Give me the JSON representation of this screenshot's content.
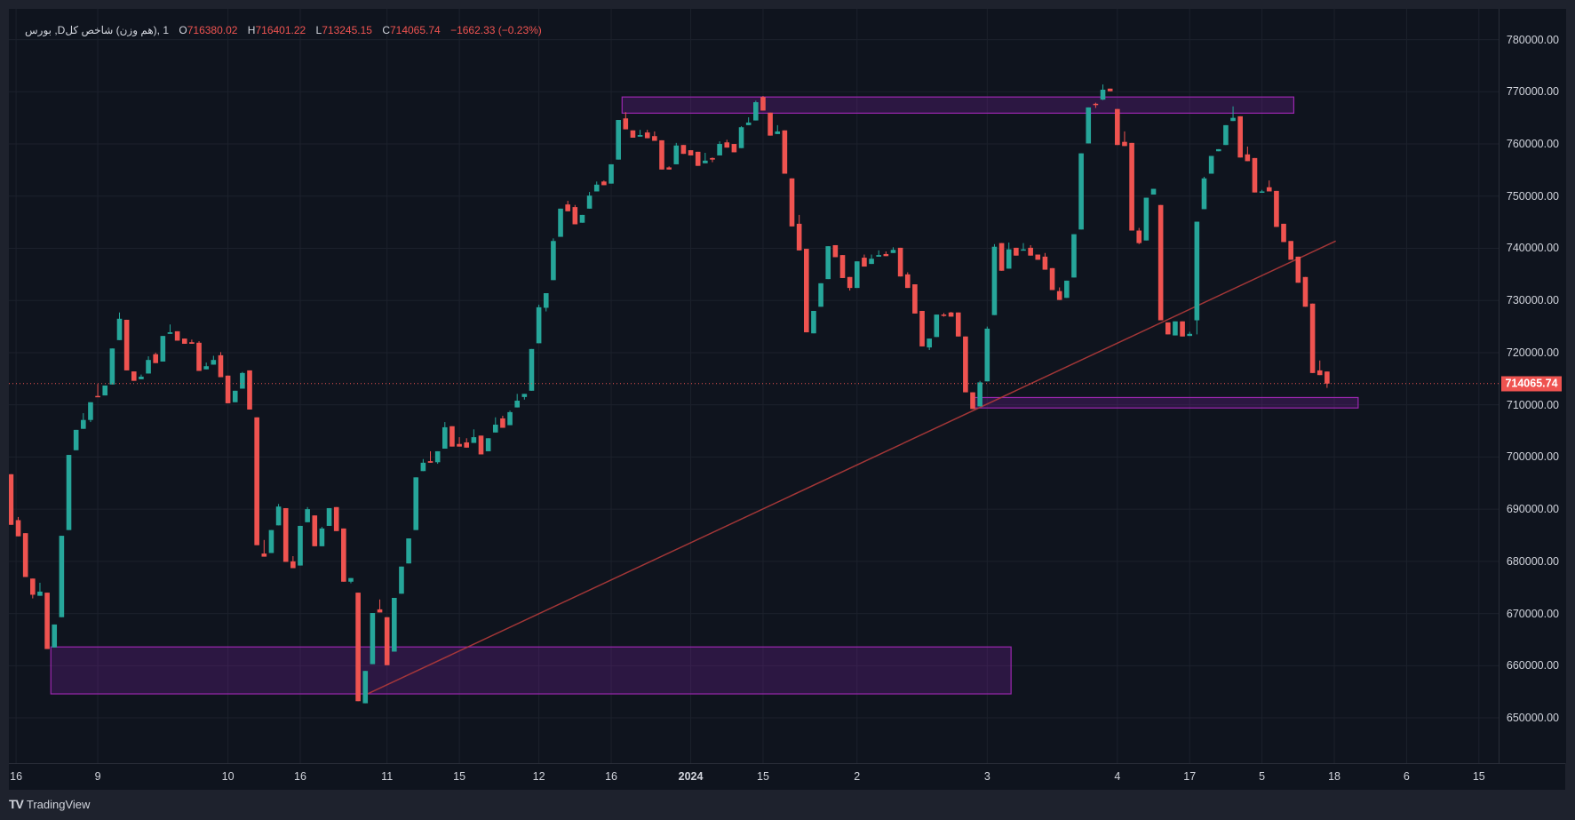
{
  "legend": {
    "symbol": "1 ,(هم وزن) شاخص کلD, بورس",
    "open_label": "O",
    "open": "716380.02",
    "high_label": "H",
    "high": "716401.22",
    "low_label": "L",
    "low": "713245.15",
    "close_label": "C",
    "close": "714065.74",
    "change": "−1662.33 (−0.23%)"
  },
  "footer": {
    "brand": "TradingView",
    "logo_glyph": "TV"
  },
  "colors": {
    "up": "#26a69a",
    "down": "#ef5350",
    "zone_border": "#9c27b0",
    "zone_fill": "rgba(123,31,162,0.28)",
    "trendline": "#b23a3a",
    "background": "#0f141e"
  },
  "chart_data": {
    "type": "candlestick",
    "interval": "1D",
    "price_unit_note": "ohlc values in thousands",
    "ylim": [
      650000,
      780000
    ],
    "y_ticks": [
      "780000.00",
      "770000.00",
      "760000.00",
      "750000.00",
      "740000.00",
      "730000.00",
      "720000.00",
      "710000.00",
      "700000.00",
      "690000.00",
      "680000.00",
      "670000.00",
      "660000.00",
      "650000.00"
    ],
    "x_ticks": [
      "16",
      "9",
      "10",
      "16",
      "11",
      "15",
      "12",
      "16",
      "2024",
      "15",
      "2",
      "3",
      "4",
      "17",
      "5",
      "18",
      "6",
      "15"
    ],
    "current_price": "714065.74",
    "ohlc": [
      [
        696.7,
        696.7,
        687.0,
        687.0
      ],
      [
        687.9,
        688.5,
        684.8,
        684.8
      ],
      [
        685.4,
        685.4,
        677.0,
        677.0
      ],
      [
        676.7,
        676.7,
        672.9,
        673.6
      ],
      [
        673.4,
        675.9,
        673.4,
        674.2
      ],
      [
        674.0,
        674.0,
        663.2,
        663.2
      ],
      [
        663.5,
        667.9,
        663.5,
        667.9
      ],
      [
        669.3,
        684.9,
        669.3,
        684.9
      ],
      [
        686.0,
        700.4,
        686.0,
        700.4
      ],
      [
        701.3,
        705.2,
        701.3,
        705.2
      ],
      [
        705.4,
        708.4,
        705.4,
        707.1
      ],
      [
        707.1,
        710.5,
        706.7,
        710.5
      ],
      [
        711.7,
        714.0,
        711.5,
        711.5
      ],
      [
        711.8,
        713.7,
        711.8,
        713.7
      ],
      [
        713.9,
        720.8,
        713.9,
        720.8
      ],
      [
        722.4,
        727.7,
        722.4,
        726.5
      ],
      [
        726.3,
        726.3,
        716.6,
        716.6
      ],
      [
        716.4,
        716.4,
        714.6,
        714.6
      ],
      [
        714.9,
        715.8,
        714.9,
        715.4
      ],
      [
        716.0,
        719.3,
        716.0,
        718.6
      ],
      [
        719.7,
        720.0,
        718.0,
        718.0
      ],
      [
        718.3,
        723.2,
        718.3,
        723.2
      ],
      [
        723.6,
        725.4,
        723.6,
        723.9
      ],
      [
        724.1,
        724.1,
        722.3,
        722.3
      ],
      [
        722.7,
        722.7,
        721.7,
        721.7
      ],
      [
        722.0,
        722.5,
        721.7,
        721.7
      ],
      [
        721.9,
        722.2,
        716.5,
        716.5
      ],
      [
        716.8,
        718.1,
        716.8,
        717.4
      ],
      [
        717.7,
        719.4,
        717.7,
        718.6
      ],
      [
        719.5,
        720.1,
        715.3,
        715.3
      ],
      [
        715.6,
        715.6,
        710.3,
        710.3
      ],
      [
        710.5,
        712.7,
        710.5,
        712.7
      ],
      [
        713.1,
        716.3,
        713.1,
        716.1
      ],
      [
        716.6,
        716.6,
        709.1,
        709.1
      ],
      [
        707.6,
        707.6,
        683.1,
        683.1
      ],
      [
        681.5,
        684.1,
        680.9,
        680.9
      ],
      [
        681.6,
        686.0,
        681.6,
        686.0
      ],
      [
        686.9,
        691.0,
        686.9,
        690.5
      ],
      [
        690.2,
        690.2,
        679.9,
        679.9
      ],
      [
        680.0,
        681.0,
        678.7,
        678.7
      ],
      [
        679.2,
        686.8,
        679.2,
        686.8
      ],
      [
        687.5,
        690.4,
        687.5,
        690.0
      ],
      [
        688.8,
        688.8,
        682.9,
        682.9
      ],
      [
        682.9,
        686.6,
        682.9,
        686.3
      ],
      [
        686.8,
        690.2,
        686.8,
        690.2
      ],
      [
        690.4,
        690.4,
        685.8,
        685.8
      ],
      [
        686.3,
        686.3,
        676.1,
        676.1
      ],
      [
        676.1,
        676.8,
        675.8,
        676.8
      ],
      [
        674.0,
        674.0,
        653.2,
        653.2
      ],
      [
        652.8,
        659.0,
        652.8,
        659.0
      ],
      [
        660.3,
        670.1,
        660.3,
        670.1
      ],
      [
        670.8,
        672.7,
        670.2,
        670.2
      ],
      [
        669.3,
        669.3,
        660.1,
        660.1
      ],
      [
        662.7,
        673.0,
        662.7,
        673.0
      ],
      [
        673.8,
        679.0,
        673.8,
        679.0
      ],
      [
        679.6,
        684.4,
        679.6,
        684.4
      ],
      [
        686.0,
        696.1,
        686.0,
        696.1
      ],
      [
        697.3,
        699.6,
        697.3,
        698.9
      ],
      [
        699.2,
        701.1,
        698.9,
        698.9
      ],
      [
        699.0,
        701.1,
        698.7,
        701.1
      ],
      [
        701.6,
        706.7,
        701.6,
        705.7
      ],
      [
        705.9,
        705.9,
        702.0,
        702.0
      ],
      [
        702.5,
        703.8,
        702.0,
        702.0
      ],
      [
        702.8,
        703.6,
        701.8,
        701.8
      ],
      [
        702.7,
        705.3,
        702.7,
        703.8
      ],
      [
        704.1,
        704.1,
        700.5,
        700.5
      ],
      [
        701.1,
        703.6,
        701.1,
        703.6
      ],
      [
        704.7,
        707.6,
        704.7,
        706.2
      ],
      [
        707.4,
        707.9,
        705.6,
        705.6
      ],
      [
        706.1,
        708.9,
        706.1,
        708.6
      ],
      [
        709.5,
        712.1,
        709.5,
        710.8
      ],
      [
        711.5,
        712.1,
        711.0,
        712.1
      ],
      [
        712.7,
        720.7,
        712.7,
        720.7
      ],
      [
        721.8,
        729.2,
        721.8,
        728.7
      ],
      [
        728.6,
        731.4,
        727.9,
        731.4
      ],
      [
        733.9,
        741.9,
        733.9,
        741.4
      ],
      [
        742.2,
        747.6,
        742.2,
        747.6
      ],
      [
        748.4,
        749.1,
        747.1,
        747.1
      ],
      [
        747.9,
        748.3,
        744.6,
        744.6
      ],
      [
        744.9,
        746.4,
        744.9,
        746.4
      ],
      [
        747.6,
        750.8,
        747.6,
        750.1
      ],
      [
        750.9,
        752.8,
        750.9,
        752.2
      ],
      [
        752.8,
        753.0,
        752.1,
        752.1
      ],
      [
        752.4,
        756.1,
        752.4,
        756.1
      ],
      [
        757.0,
        764.6,
        757.0,
        764.6
      ],
      [
        764.9,
        766.1,
        762.8,
        762.8
      ],
      [
        762.6,
        762.6,
        761.2,
        761.2
      ],
      [
        761.4,
        762.7,
        761.4,
        761.7
      ],
      [
        762.2,
        762.7,
        761.1,
        761.1
      ],
      [
        761.5,
        762.4,
        760.6,
        760.6
      ],
      [
        760.7,
        760.7,
        755.1,
        755.1
      ],
      [
        755.5,
        755.7,
        755.1,
        755.1
      ],
      [
        756.1,
        760.2,
        756.1,
        759.7
      ],
      [
        759.8,
        759.8,
        758.1,
        758.1
      ],
      [
        758.8,
        758.8,
        757.8,
        757.8
      ],
      [
        758.5,
        758.5,
        755.8,
        755.8
      ],
      [
        756.3,
        758.3,
        756.3,
        756.8
      ],
      [
        757.3,
        757.4,
        756.5,
        757.0
      ],
      [
        757.8,
        760.5,
        757.8,
        760.0
      ],
      [
        760.3,
        760.8,
        759.3,
        759.3
      ],
      [
        760.0,
        760.0,
        758.4,
        758.4
      ],
      [
        759.2,
        763.4,
        759.2,
        763.2
      ],
      [
        763.6,
        765.1,
        763.6,
        764.1
      ],
      [
        764.5,
        768.3,
        764.5,
        768.0
      ],
      [
        769.0,
        769.2,
        766.4,
        766.4
      ],
      [
        766.0,
        766.0,
        761.6,
        761.6
      ],
      [
        761.9,
        763.6,
        761.9,
        762.4
      ],
      [
        762.6,
        762.6,
        754.3,
        754.3
      ],
      [
        753.4,
        753.4,
        744.2,
        744.2
      ],
      [
        744.7,
        746.4,
        739.6,
        739.6
      ],
      [
        739.9,
        739.9,
        723.9,
        723.9
      ],
      [
        723.7,
        728.0,
        723.7,
        728.0
      ],
      [
        728.8,
        733.3,
        728.8,
        733.3
      ],
      [
        734.1,
        740.4,
        734.1,
        740.4
      ],
      [
        740.6,
        740.6,
        738.3,
        738.3
      ],
      [
        738.7,
        738.7,
        734.3,
        734.3
      ],
      [
        734.5,
        734.5,
        731.9,
        732.4
      ],
      [
        732.4,
        737.5,
        732.4,
        737.5
      ],
      [
        738.2,
        738.8,
        736.5,
        736.5
      ],
      [
        737.0,
        738.8,
        737.0,
        738.0
      ],
      [
        738.4,
        739.6,
        738.4,
        738.7
      ],
      [
        738.9,
        739.4,
        738.5,
        738.5
      ],
      [
        739.1,
        740.2,
        739.1,
        739.7
      ],
      [
        740.1,
        740.1,
        734.6,
        734.6
      ],
      [
        735.0,
        735.4,
        732.4,
        732.4
      ],
      [
        733.1,
        733.1,
        727.5,
        727.5
      ],
      [
        728.0,
        728.0,
        721.2,
        721.2
      ],
      [
        721.0,
        722.7,
        720.5,
        722.7
      ],
      [
        723.0,
        727.3,
        723.0,
        727.3
      ],
      [
        727.3,
        727.6,
        726.9,
        727.1
      ],
      [
        727.7,
        727.8,
        726.9,
        726.9
      ],
      [
        727.7,
        727.7,
        723.1,
        723.1
      ],
      [
        723.1,
        723.1,
        712.4,
        712.4
      ],
      [
        712.4,
        712.4,
        709.2,
        709.2
      ],
      [
        709.7,
        714.6,
        709.7,
        714.3
      ],
      [
        714.5,
        725.0,
        714.5,
        724.6
      ],
      [
        727.2,
        740.8,
        727.2,
        740.3
      ],
      [
        741.0,
        741.0,
        735.7,
        735.7
      ],
      [
        736.1,
        741.1,
        736.1,
        739.8
      ],
      [
        740.1,
        740.1,
        738.6,
        738.6
      ],
      [
        739.6,
        741.0,
        739.6,
        739.8
      ],
      [
        740.1,
        740.6,
        738.6,
        738.6
      ],
      [
        738.8,
        738.8,
        737.8,
        737.8
      ],
      [
        738.4,
        739.1,
        735.9,
        735.9
      ],
      [
        736.2,
        736.2,
        732.0,
        732.0
      ],
      [
        731.8,
        732.5,
        730.1,
        730.1
      ],
      [
        730.5,
        733.8,
        730.5,
        733.8
      ],
      [
        734.4,
        742.7,
        734.4,
        742.7
      ],
      [
        743.6,
        758.2,
        743.6,
        758.2
      ],
      [
        760.1,
        767.0,
        760.1,
        767.0
      ],
      [
        767.7,
        767.9,
        766.9,
        767.6
      ],
      [
        768.5,
        771.4,
        768.4,
        770.4
      ],
      [
        770.6,
        770.6,
        770.1,
        770.1
      ],
      [
        766.7,
        766.7,
        759.8,
        759.8
      ],
      [
        760.4,
        762.4,
        759.6,
        759.6
      ],
      [
        760.2,
        760.2,
        743.4,
        743.4
      ],
      [
        743.4,
        743.9,
        740.8,
        741.0
      ],
      [
        741.5,
        749.7,
        741.5,
        749.7
      ],
      [
        750.3,
        751.4,
        750.3,
        751.4
      ],
      [
        748.3,
        748.3,
        726.2,
        726.2
      ],
      [
        725.8,
        725.8,
        723.5,
        723.5
      ],
      [
        723.3,
        726.0,
        723.3,
        726.0
      ],
      [
        726.0,
        726.0,
        723.1,
        723.1
      ],
      [
        723.2,
        724.0,
        723.2,
        723.6
      ],
      [
        726.2,
        745.1,
        723.5,
        745.1
      ],
      [
        747.5,
        753.7,
        747.5,
        753.4
      ],
      [
        754.3,
        757.7,
        754.3,
        757.7
      ],
      [
        758.6,
        759.0,
        758.6,
        759.0
      ],
      [
        759.8,
        763.6,
        759.8,
        763.6
      ],
      [
        764.4,
        767.2,
        764.4,
        765.0
      ],
      [
        765.3,
        765.3,
        757.4,
        757.4
      ],
      [
        758.0,
        759.5,
        756.7,
        756.7
      ],
      [
        757.3,
        757.3,
        750.7,
        750.7
      ],
      [
        750.7,
        751.2,
        750.7,
        750.9
      ],
      [
        751.7,
        753.0,
        750.9,
        750.9
      ],
      [
        751.0,
        751.0,
        744.1,
        744.1
      ],
      [
        744.7,
        744.7,
        741.2,
        741.2
      ],
      [
        741.4,
        741.4,
        737.8,
        737.8
      ],
      [
        738.4,
        738.4,
        733.4,
        733.4
      ],
      [
        734.5,
        734.5,
        728.8,
        728.8
      ],
      [
        729.4,
        729.4,
        716.1,
        716.1
      ],
      [
        716.6,
        718.5,
        715.7,
        715.7
      ],
      [
        716.38,
        716.401,
        713.245,
        714.066
      ]
    ],
    "zones": [
      {
        "name": "resistance-zone",
        "from_bar": 85,
        "to_bar": 177.4,
        "price_top": 769.0,
        "price_bottom": 765.9
      },
      {
        "name": "support-zone-right",
        "from_bar": 133.6,
        "to_bar": 186.3,
        "price_top": 711.4,
        "price_bottom": 709.4
      },
      {
        "name": "demand-zone",
        "from_bar": 6,
        "to_bar": 138.3,
        "price_top": 663.6,
        "price_bottom": 654.6
      }
    ],
    "trendline": {
      "from_bar": 49,
      "from_price": 654.4,
      "to_bar": 183.2,
      "to_price": 741.4
    }
  }
}
